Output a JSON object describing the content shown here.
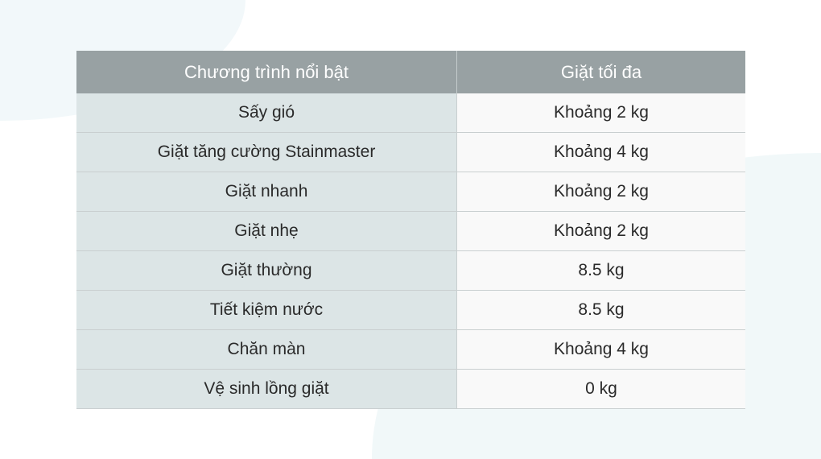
{
  "table": {
    "headers": [
      "Chương trình nổi bật",
      "Giặt tối đa"
    ],
    "rows": [
      [
        "Sấy gió",
        "Khoảng 2 kg"
      ],
      [
        "Giặt tăng cường Stainmaster",
        "Khoảng 4 kg"
      ],
      [
        "Giặt nhanh",
        "Khoảng 2 kg"
      ],
      [
        "Giặt nhẹ",
        "Khoảng 2 kg"
      ],
      [
        "Giặt thường",
        "8.5 kg"
      ],
      [
        "Tiết kiệm nước",
        "8.5 kg"
      ],
      [
        "Chăn màn",
        "Khoảng 4 kg"
      ],
      [
        "Vệ sinh lồng giặt",
        "0 kg"
      ]
    ]
  },
  "colors": {
    "header_bg": "#98a1a3",
    "left_column_bg": "#dce5e6",
    "right_column_bg": "#f9f9f9"
  }
}
